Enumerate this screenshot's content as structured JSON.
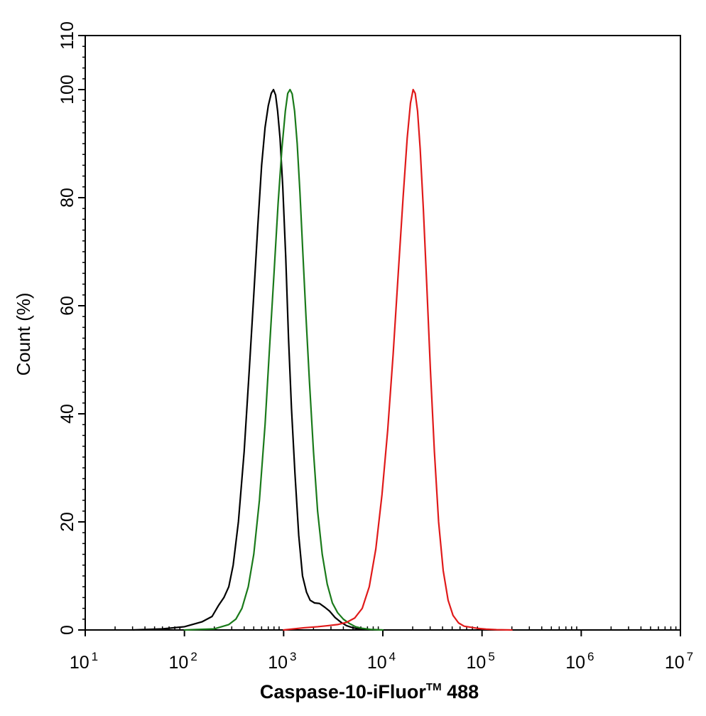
{
  "chart_data": {
    "type": "line",
    "title": "",
    "xlabel": "Caspase-10-iFluor™ 488",
    "xlabel_main": "Caspase-10-iFluor",
    "xlabel_tm": "TM",
    "xlabel_suffix": " 488",
    "ylabel": "Count  (%)",
    "x_scale": "log",
    "xlim": [
      10,
      10000000
    ],
    "ylim": [
      0,
      110
    ],
    "x_tick_values": [
      10,
      100,
      1000,
      10000,
      100000,
      1000000,
      10000000
    ],
    "x_tick_labels": [
      {
        "base": "10",
        "exp": "1"
      },
      {
        "base": "10",
        "exp": "2"
      },
      {
        "base": "10",
        "exp": "3"
      },
      {
        "base": "10",
        "exp": "4"
      },
      {
        "base": "10",
        "exp": "5"
      },
      {
        "base": "10",
        "exp": "6"
      },
      {
        "base": "10",
        "exp": "7"
      }
    ],
    "y_ticks": [
      "0",
      "20",
      "40",
      "60",
      "80",
      "100",
      "110"
    ],
    "grid": false,
    "legend": "none",
    "series": [
      {
        "color": "#000000",
        "x": [
          30,
          60,
          100,
          150,
          190,
          220,
          250,
          280,
          310,
          350,
          400,
          450,
          500,
          550,
          600,
          650,
          700,
          750,
          790,
          830,
          870,
          920,
          980,
          1050,
          1120,
          1200,
          1300,
          1420,
          1550,
          1700,
          1850,
          2050,
          2300,
          2600,
          2900,
          3300,
          3800,
          4300,
          5000,
          6000,
          8000
        ],
        "y": [
          0,
          0.2,
          0.6,
          1.5,
          2.5,
          4.5,
          6,
          8,
          12,
          20,
          33,
          48,
          62,
          75,
          86,
          93,
          97,
          99.3,
          100,
          99,
          96,
          91,
          82,
          69,
          54,
          41,
          29,
          17.5,
          10,
          7,
          5.5,
          5,
          4.9,
          4.2,
          3.5,
          2.3,
          1.4,
          0.8,
          0.4,
          0.1,
          0
        ]
      },
      {
        "color": "#1a7a1a",
        "x": [
          100,
          200,
          280,
          330,
          380,
          440,
          500,
          570,
          650,
          720,
          800,
          880,
          960,
          1040,
          1100,
          1160,
          1220,
          1290,
          1370,
          1460,
          1560,
          1680,
          1820,
          2000,
          2200,
          2450,
          2750,
          3100,
          3500,
          4000,
          4600,
          5300,
          6200,
          7500,
          10000
        ],
        "y": [
          0,
          0.2,
          1,
          2,
          4,
          8,
          14,
          24,
          38,
          52,
          66,
          79,
          89,
          96,
          99.3,
          100,
          99.2,
          96,
          90,
          81,
          70,
          58,
          46,
          33,
          22,
          14,
          8.5,
          5,
          3.2,
          2,
          1.2,
          0.6,
          0.3,
          0.1,
          0
        ]
      },
      {
        "color": "#e01a1a",
        "x": [
          1000,
          1600,
          2200,
          2800,
          3500,
          4300,
          5200,
          6200,
          7300,
          8500,
          9800,
          11200,
          12700,
          14300,
          16000,
          17600,
          19000,
          20200,
          21200,
          22400,
          23800,
          25600,
          27700,
          30200,
          33100,
          36500,
          40600,
          45500,
          51000,
          58000,
          66000,
          77000,
          90000,
          110000,
          140000,
          200000
        ],
        "y": [
          0,
          0.4,
          0.6,
          0.8,
          1.0,
          1.4,
          2.2,
          4,
          8,
          15,
          25,
          37,
          51,
          66,
          80,
          91,
          97.5,
          100,
          99.3,
          96,
          89,
          78,
          64,
          48,
          33,
          20,
          11,
          5.5,
          2.7,
          1.3,
          0.7,
          0.5,
          0.3,
          0.15,
          0.05,
          0
        ]
      }
    ]
  }
}
